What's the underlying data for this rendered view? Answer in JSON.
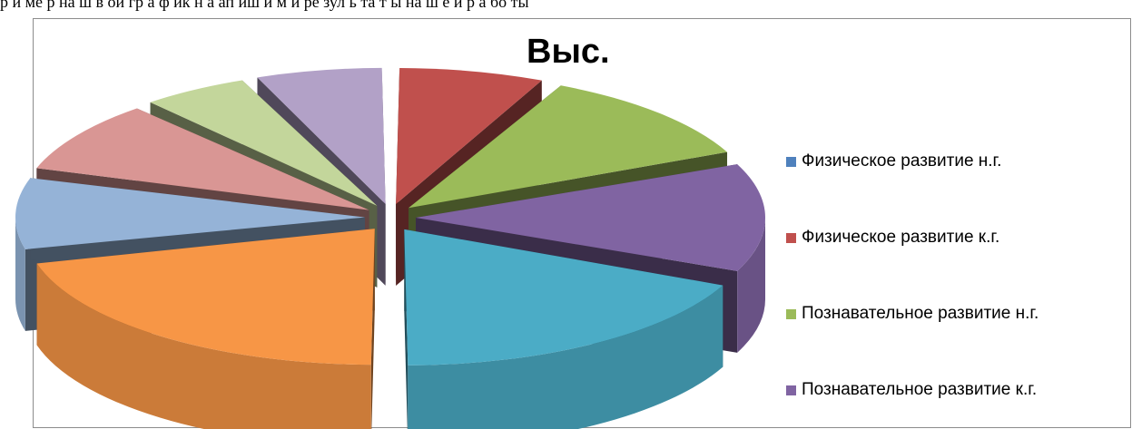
{
  "page": {
    "top_text": "р и ме р на ш в ой гр а ф ик н а ап иш и м и ре зул ь та т ы на ш е й р а бо ты"
  },
  "chart_data": {
    "type": "pie",
    "title": "Выс.",
    "three_d": true,
    "exploded": true,
    "legend_position": "right",
    "legend_visible_entries": 4,
    "slices": [
      {
        "name": "Физическое развитие н.г.",
        "value": 0,
        "color": "#4F81BD"
      },
      {
        "name": "Физическое развитие к.г.",
        "value": 8,
        "color": "#C0504D"
      },
      {
        "name": "Познавательное развитие н.г.",
        "value": 13,
        "color": "#9BBB59"
      },
      {
        "name": "Познавательное развитие к.г.",
        "value": 15,
        "color": "#8064A2"
      },
      {
        "name": "",
        "value": 21,
        "color": "#4BACC6"
      },
      {
        "name": "",
        "value": 24,
        "color": "#F79646"
      },
      {
        "name": "",
        "value": 10,
        "color": "#95B3D7"
      },
      {
        "name": "",
        "value": 10,
        "color": "#D99694"
      },
      {
        "name": "",
        "value": 6,
        "color": "#C3D69B"
      },
      {
        "name": "",
        "value": 7,
        "color": "#B2A1C7"
      }
    ]
  }
}
